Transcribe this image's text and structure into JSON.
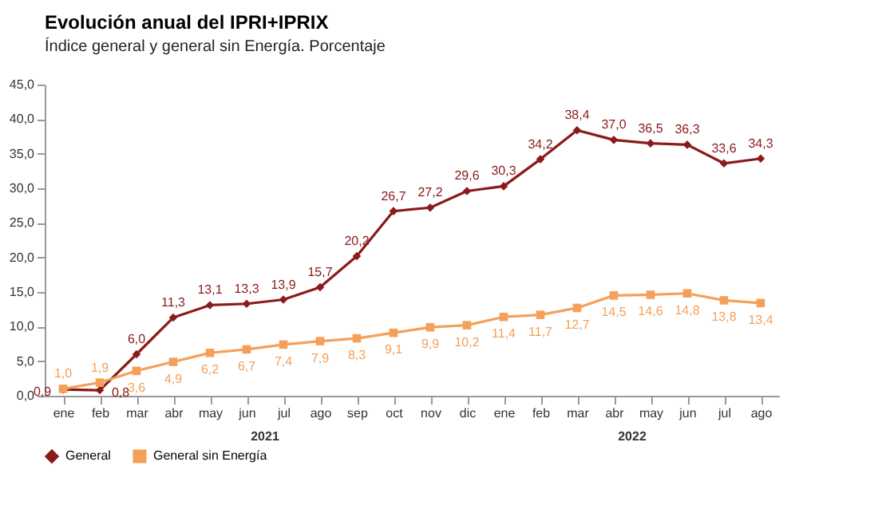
{
  "chart_data": {
    "type": "line",
    "title": "Evolución anual del IPRI+IPRIX",
    "subtitle": "Índice general y general sin Energía. Porcentaje",
    "categories": [
      "ene",
      "feb",
      "mar",
      "abr",
      "may",
      "jun",
      "jul",
      "ago",
      "sep",
      "oct",
      "nov",
      "dic",
      "ene",
      "feb",
      "mar",
      "abr",
      "may",
      "jun",
      "jul",
      "ago"
    ],
    "series": [
      {
        "name": "General",
        "color": "#8b1a1a",
        "marker": "diamond",
        "values": [
          0.9,
          0.8,
          6.0,
          11.3,
          13.1,
          13.3,
          13.9,
          15.7,
          20.2,
          26.7,
          27.2,
          29.6,
          30.3,
          34.2,
          38.4,
          37.0,
          36.5,
          36.3,
          33.6,
          34.3
        ],
        "value_labels": [
          "0,9",
          "0,8",
          "6,0",
          "11,3",
          "13,1",
          "13,3",
          "13,9",
          "15,7",
          "20,2",
          "26,7",
          "27,2",
          "29,6",
          "30,3",
          "34,2",
          "38,4",
          "37,0",
          "36,5",
          "36,3",
          "33,6",
          "34,3"
        ]
      },
      {
        "name": "General sin Energía",
        "color": "#f5a05a",
        "marker": "square",
        "values": [
          1.0,
          1.9,
          3.6,
          4.9,
          6.2,
          6.7,
          7.4,
          7.9,
          8.3,
          9.1,
          9.9,
          10.2,
          11.4,
          11.7,
          12.7,
          14.5,
          14.6,
          14.8,
          13.8,
          13.4
        ],
        "value_labels": [
          "1,0",
          "1,9",
          "3,6",
          "4,9",
          "6,2",
          "6,7",
          "7,4",
          "7,9",
          "8,3",
          "9,1",
          "9,9",
          "10,2",
          "11,4",
          "11,7",
          "12,7",
          "14,5",
          "14,6",
          "14,8",
          "13,8",
          "13,4"
        ]
      }
    ],
    "ylim": [
      0,
      45
    ],
    "yticks": [
      {
        "value": 0,
        "label": "0,0"
      },
      {
        "value": 5,
        "label": "5,0"
      },
      {
        "value": 10,
        "label": "10,0"
      },
      {
        "value": 15,
        "label": "15,0"
      },
      {
        "value": 20,
        "label": "20,0"
      },
      {
        "value": 25,
        "label": "25,0"
      },
      {
        "value": 30,
        "label": "30,0"
      },
      {
        "value": 35,
        "label": "35,0"
      },
      {
        "value": 40,
        "label": "40,0"
      },
      {
        "value": 45,
        "label": "45,0"
      }
    ],
    "grid": false,
    "legend": "bottom",
    "data_labels": true,
    "annotations": [
      "2021",
      "2022"
    ]
  }
}
